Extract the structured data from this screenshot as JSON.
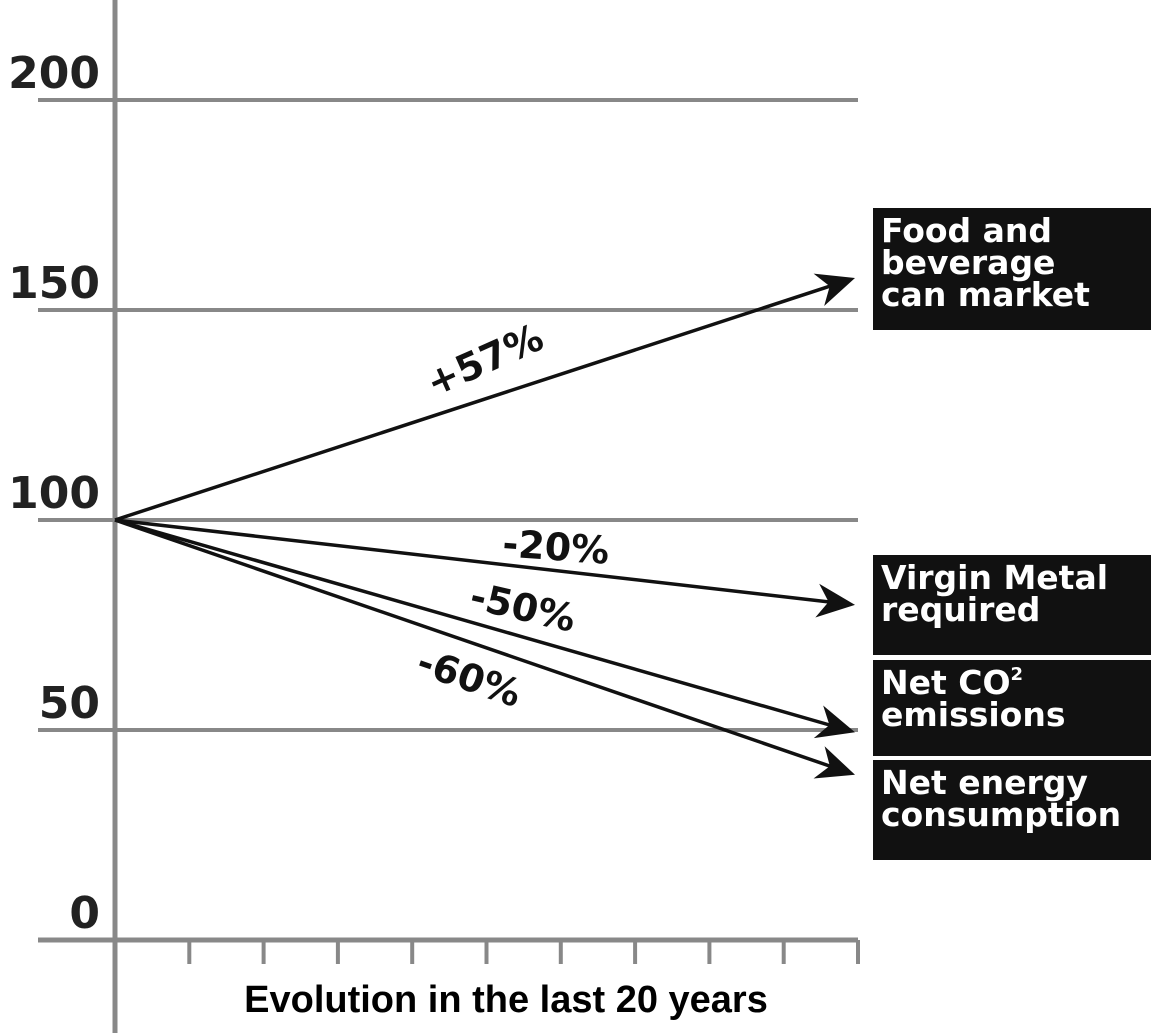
{
  "chart_data": {
    "type": "line",
    "xlabel": "Evolution in the last 20 years",
    "ylabel": "",
    "ylim": [
      0,
      200
    ],
    "yticks": [
      0,
      50,
      100,
      150,
      200
    ],
    "grid": true,
    "start_value": 100,
    "series": [
      {
        "name": "Food and beverage can market",
        "change_label": "+57%",
        "start": 100,
        "end": 157,
        "label_lines": [
          "Food and",
          "beverage",
          "can market"
        ]
      },
      {
        "name": "Virgin Metal required",
        "change_label": "-20%",
        "start": 100,
        "end": 80,
        "label_lines": [
          "Virgin Metal",
          "required"
        ]
      },
      {
        "name": "Net CO2 emissions",
        "change_label": "-50%",
        "start": 100,
        "end": 50,
        "label_lines": [
          "Net CO",
          "emissions"
        ],
        "superscript": "2"
      },
      {
        "name": "Net energy consumption",
        "change_label": "-60%",
        "start": 100,
        "end": 40,
        "label_lines": [
          "Net energy",
          "consumption"
        ]
      }
    ]
  }
}
